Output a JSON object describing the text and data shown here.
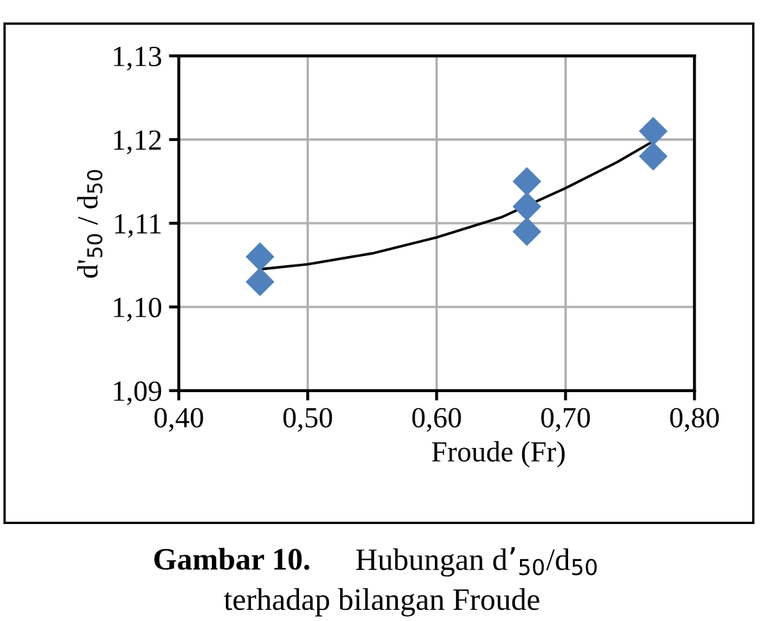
{
  "chart_data": {
    "type": "scatter",
    "xlabel": "Froude (Fr)",
    "ylabel": "d'$_{50}$ / d$_{50}$",
    "annotations": [
      "Gambar 10.",
      "Hubungan d’$_{50}$/d$_{50}$",
      "terhadap bilangan Froude"
    ],
    "series": [
      {
        "color": "#4f81bd",
        "marker": "diamond",
        "x": [
          0.463,
          0.463,
          0.67,
          0.67,
          0.67,
          0.768,
          0.768
        ],
        "values": [
          1.106,
          1.103,
          1.115,
          1.112,
          1.109,
          1.121,
          1.118
        ]
      },
      {
        "type": "line",
        "color": "#000000",
        "x": [
          0.463,
          0.5,
          0.55,
          0.6,
          0.65,
          0.7,
          0.74,
          0.768
        ],
        "values": [
          1.1045,
          1.1051,
          1.1064,
          1.1083,
          1.1107,
          1.1142,
          1.1173,
          1.1198
        ]
      }
    ],
    "xlim": [
      0.4,
      0.8
    ],
    "xticks": [
      {
        "value": 0.4,
        "label": "0,40"
      },
      {
        "value": 0.5,
        "label": "0,50"
      },
      {
        "value": 0.6,
        "label": "0,60"
      },
      {
        "value": 0.7,
        "label": "0,70"
      },
      {
        "value": 0.8,
        "label": "0,80"
      }
    ],
    "ylim": [
      1.09,
      1.13
    ],
    "yticks": [
      {
        "value": 1.09,
        "label": "1,09"
      },
      {
        "value": 1.1,
        "label": "1,10"
      },
      {
        "value": 1.11,
        "label": "1,11"
      },
      {
        "value": 1.12,
        "label": "1,12"
      },
      {
        "value": 1.13,
        "label": "1,13"
      }
    ],
    "grid": true
  }
}
